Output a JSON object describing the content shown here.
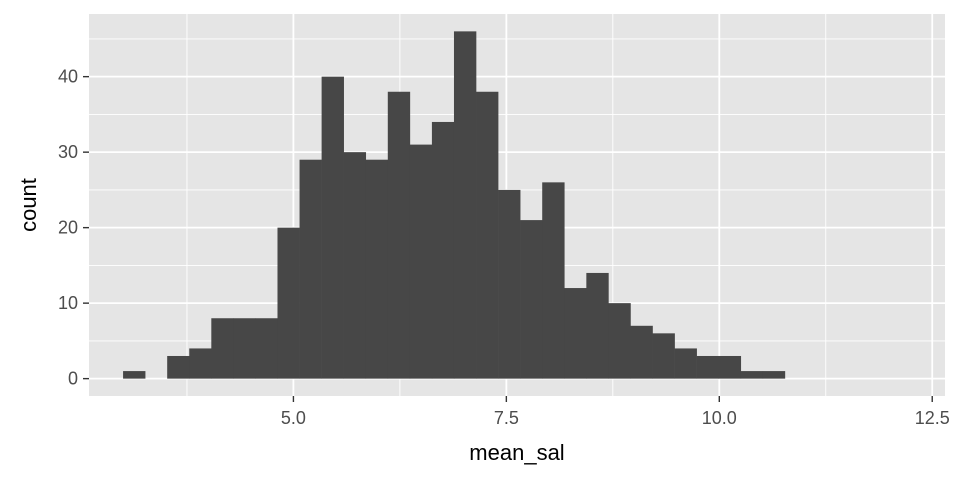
{
  "chart_data": {
    "type": "bar",
    "title": "",
    "xlabel": "mean_sal",
    "ylabel": "count",
    "bin_width": 0.259,
    "bin_start": 3.0,
    "counts": [
      1,
      0,
      3,
      4,
      8,
      8,
      8,
      20,
      29,
      40,
      30,
      29,
      38,
      31,
      34,
      46,
      38,
      25,
      21,
      26,
      12,
      14,
      10,
      7,
      6,
      4,
      3,
      3,
      1,
      1
    ],
    "xlim": [
      2.6,
      12.65
    ],
    "ylim": [
      -2.3,
      48.3
    ],
    "x_ticks": [
      5.0,
      7.5,
      10.0,
      12.5
    ],
    "x_tick_labels": [
      "5.0",
      "7.5",
      "10.0",
      "12.5"
    ],
    "y_ticks": [
      0,
      10,
      20,
      30,
      40
    ],
    "y_tick_labels": [
      "0",
      "10",
      "20",
      "30",
      "40"
    ],
    "grid": true,
    "colors": {
      "panel": "#e5e5e5",
      "grid_major": "#ffffff",
      "bar_fill": "#474747",
      "tick_text": "#4d4d4d",
      "tick_mark": "#333333"
    }
  }
}
